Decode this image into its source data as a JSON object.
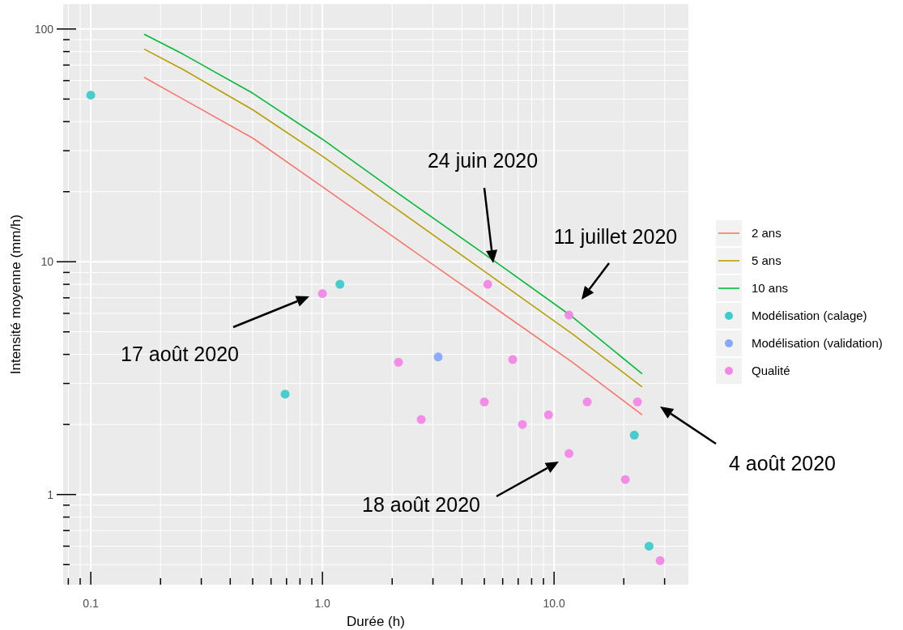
{
  "chart_data": {
    "type": "line",
    "xlabel": "Durée (h)",
    "ylabel": "Intensité moyenne (mm/h)",
    "log": "xy",
    "grid": true,
    "legend": "right",
    "xlim": [
      0.076,
      38
    ],
    "ylim": [
      0.41,
      128
    ],
    "xticks": [
      {
        "value": 0.08,
        "label": null
      },
      {
        "value": 0.09,
        "label": null
      },
      {
        "value": 0.1,
        "label": "0.1"
      },
      {
        "value": 0.2,
        "label": null
      },
      {
        "value": 0.3,
        "label": null
      },
      {
        "value": 0.4,
        "label": null
      },
      {
        "value": 0.5,
        "label": null
      },
      {
        "value": 0.6,
        "label": null
      },
      {
        "value": 0.7,
        "label": null
      },
      {
        "value": 0.8,
        "label": null
      },
      {
        "value": 0.9,
        "label": null
      },
      {
        "value": 1,
        "label": "1.0"
      },
      {
        "value": 2,
        "label": null
      },
      {
        "value": 3,
        "label": null
      },
      {
        "value": 4,
        "label": null
      },
      {
        "value": 5,
        "label": null
      },
      {
        "value": 6,
        "label": null
      },
      {
        "value": 7,
        "label": null
      },
      {
        "value": 8,
        "label": null
      },
      {
        "value": 9,
        "label": null
      },
      {
        "value": 10,
        "label": "10.0"
      },
      {
        "value": 20,
        "label": null
      },
      {
        "value": 30,
        "label": null
      }
    ],
    "yticks": [
      {
        "value": 0.5,
        "label": null
      },
      {
        "value": 0.6,
        "label": null
      },
      {
        "value": 0.7,
        "label": null
      },
      {
        "value": 0.8,
        "label": null
      },
      {
        "value": 0.9,
        "label": null
      },
      1,
      {
        "value": 2,
        "label": null
      },
      {
        "value": 3,
        "label": null
      },
      {
        "value": 4,
        "label": null
      },
      {
        "value": 5,
        "label": null
      },
      {
        "value": 6,
        "label": null
      },
      {
        "value": 7,
        "label": null
      },
      {
        "value": 8,
        "label": null
      },
      {
        "value": 9,
        "label": null
      },
      10,
      {
        "value": 20,
        "label": null
      },
      {
        "value": 30,
        "label": null
      },
      {
        "value": 40,
        "label": null
      },
      {
        "value": 50,
        "label": null
      },
      {
        "value": 60,
        "label": null
      },
      {
        "value": 70,
        "label": null
      },
      {
        "value": 80,
        "label": null
      },
      {
        "value": 90,
        "label": null
      },
      100
    ],
    "series": [
      {
        "name": "2 ans",
        "color": "#f8766d",
        "x": [
          0.17,
          0.25,
          0.5,
          1,
          2,
          6,
          12,
          24
        ],
        "values": [
          62,
          50,
          34,
          21,
          12.9,
          6,
          3.7,
          2.2
        ]
      },
      {
        "name": "5 ans",
        "color": "#b79f00",
        "x": [
          0.17,
          0.25,
          0.5,
          1,
          2,
          6,
          12,
          24
        ],
        "values": [
          82,
          67,
          45,
          28.4,
          17.4,
          8,
          4.9,
          2.9
        ]
      },
      {
        "name": "10 ans",
        "color": "#00ba38",
        "x": [
          0.17,
          0.25,
          0.5,
          1,
          2,
          6,
          12,
          24
        ],
        "values": [
          95,
          78,
          53,
          33.6,
          20.5,
          9.5,
          5.8,
          3.3
        ]
      },
      {
        "name": "Modélisation (calage)",
        "type": "scatter",
        "marker": "circle",
        "color": "#3fcacb",
        "x": [
          0.1,
          1.19,
          0.69,
          22.2,
          25.7
        ],
        "values": [
          52,
          8,
          2.7,
          1.8,
          0.6
        ]
      },
      {
        "name": "Modélisation (validation)",
        "type": "scatter",
        "marker": "circle",
        "color": "#88a9fb",
        "x": [
          3.16
        ],
        "values": [
          3.9
        ]
      },
      {
        "name": "Qualité",
        "type": "scatter",
        "marker": "circle",
        "color": "#f287e6",
        "x": [
          1,
          2.13,
          2.67,
          5.17,
          5,
          6.63,
          7.3,
          9.46,
          11.6,
          11.6,
          13.9,
          22.9,
          20.3,
          28.7
        ],
        "values": [
          7.3,
          3.7,
          2.1,
          8,
          2.5,
          3.8,
          2,
          2.2,
          5.9,
          1.5,
          2.5,
          2.5,
          1.16,
          0.52
        ]
      }
    ],
    "annotations": [
      "24 juin 2020",
      "11 juillet 2020",
      "17 août 2020",
      "18 août 2020",
      "4 août 2020"
    ]
  }
}
